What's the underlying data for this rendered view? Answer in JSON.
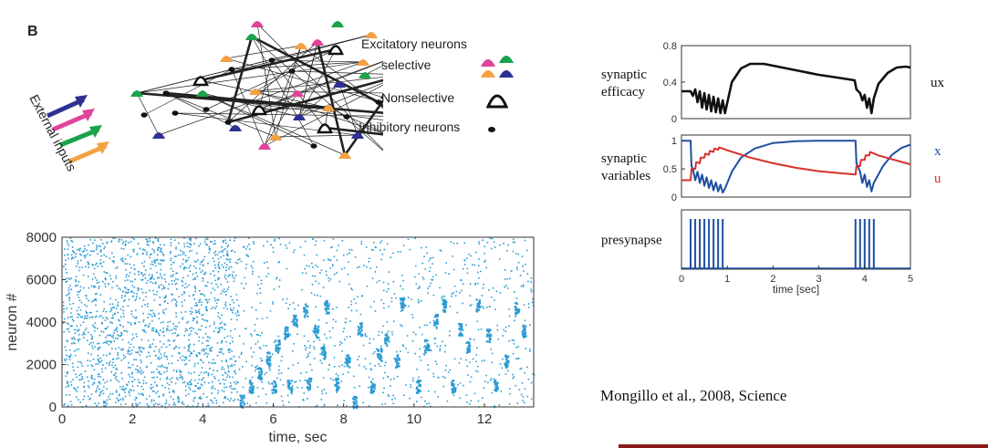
{
  "panel_b": {
    "label": "B",
    "external_inputs_label": "External inputs",
    "legend": {
      "excitatory": "Excitatory neurons",
      "selective": "selective",
      "nonselective": "Nonselective",
      "inhibitory": "Inhibitory neurons"
    },
    "colors": {
      "magenta": "#e0449a",
      "green": "#1aa34a",
      "orange": "#f4a142",
      "navy": "#2e3192",
      "black": "#111111"
    },
    "icons": [
      "selective-neuron-icon",
      "nonselective-neuron-icon",
      "inhibitory-neuron-icon",
      "arrow-icon"
    ]
  },
  "citation": "Mongillo et al., 2008,  Science",
  "chart_data": [
    {
      "type": "scatter",
      "title": "",
      "xlabel": "time, sec",
      "ylabel": "neuron #",
      "xlim": [
        0,
        13.4
      ],
      "ylim": [
        0,
        8000
      ],
      "xticks": [
        "0",
        "2",
        "4",
        "6",
        "8",
        "10",
        "12"
      ],
      "yticks": [
        "0",
        "2000",
        "4000",
        "6000",
        "8000"
      ],
      "color": "#2a9bd4",
      "background_density": {
        "before_t": 5.0,
        "after_t": 5.0
      },
      "bursts": [
        {
          "t": 5.1,
          "y": 300
        },
        {
          "t": 5.35,
          "y": 1000
        },
        {
          "t": 5.6,
          "y": 1650
        },
        {
          "t": 5.85,
          "y": 2300
        },
        {
          "t": 6.1,
          "y": 2900
        },
        {
          "t": 6.35,
          "y": 3500
        },
        {
          "t": 6.6,
          "y": 4100
        },
        {
          "t": 6.9,
          "y": 4600
        },
        {
          "t": 7.2,
          "y": 3600
        },
        {
          "t": 6.0,
          "y": 1000
        },
        {
          "t": 6.45,
          "y": 1000
        },
        {
          "t": 7.0,
          "y": 1100
        },
        {
          "t": 7.4,
          "y": 2600
        },
        {
          "t": 7.5,
          "y": 4750
        },
        {
          "t": 7.8,
          "y": 1100
        },
        {
          "t": 8.1,
          "y": 2200
        },
        {
          "t": 8.3,
          "y": 300
        },
        {
          "t": 8.45,
          "y": 3700
        },
        {
          "t": 8.8,
          "y": 1000
        },
        {
          "t": 9.0,
          "y": 2500
        },
        {
          "t": 9.2,
          "y": 3200
        },
        {
          "t": 9.5,
          "y": 2200
        },
        {
          "t": 9.65,
          "y": 4900
        },
        {
          "t": 10.1,
          "y": 1000
        },
        {
          "t": 10.35,
          "y": 2900
        },
        {
          "t": 10.6,
          "y": 4100
        },
        {
          "t": 10.85,
          "y": 4800
        },
        {
          "t": 11.1,
          "y": 1000
        },
        {
          "t": 11.3,
          "y": 3700
        },
        {
          "t": 11.5,
          "y": 2900
        },
        {
          "t": 11.8,
          "y": 4800
        },
        {
          "t": 12.1,
          "y": 3400
        },
        {
          "t": 12.3,
          "y": 1000
        },
        {
          "t": 12.6,
          "y": 2200
        },
        {
          "t": 12.9,
          "y": 4700
        },
        {
          "t": 13.1,
          "y": 3600
        }
      ]
    },
    {
      "type": "line",
      "title": "",
      "ylabel_lines": [
        "synaptic",
        "efficacy"
      ],
      "right_label": "ux",
      "xlim": [
        0,
        5
      ],
      "ylim": [
        0,
        0.8
      ],
      "yticks": [
        "0",
        "0.4",
        "0.8"
      ],
      "series": [
        {
          "name": "ux",
          "color": "#111111",
          "x": [
            0,
            0.2,
            0.25,
            0.3,
            0.35,
            0.4,
            0.45,
            0.5,
            0.55,
            0.6,
            0.65,
            0.7,
            0.75,
            0.8,
            0.85,
            0.9,
            0.95,
            1.1,
            1.3,
            1.5,
            1.8,
            2.2,
            2.6,
            3.0,
            3.4,
            3.78,
            3.82,
            3.9,
            3.95,
            4.0,
            4.05,
            4.1,
            4.15,
            4.2,
            4.3,
            4.5,
            4.7,
            4.9,
            5.0
          ],
          "y": [
            0.3,
            0.3,
            0.25,
            0.32,
            0.18,
            0.3,
            0.12,
            0.28,
            0.1,
            0.26,
            0.08,
            0.24,
            0.07,
            0.22,
            0.06,
            0.2,
            0.06,
            0.4,
            0.55,
            0.6,
            0.6,
            0.56,
            0.52,
            0.48,
            0.45,
            0.42,
            0.32,
            0.28,
            0.2,
            0.26,
            0.12,
            0.22,
            0.06,
            0.22,
            0.38,
            0.5,
            0.56,
            0.57,
            0.56
          ]
        }
      ]
    },
    {
      "type": "line",
      "title": "",
      "ylabel_lines": [
        "synaptic",
        "variables"
      ],
      "xlim": [
        0,
        5
      ],
      "ylim": [
        0,
        1.1
      ],
      "yticks": [
        "0",
        "0.5",
        "1"
      ],
      "series": [
        {
          "name": "x",
          "color": "#1f4fa0",
          "x": [
            0,
            0.2,
            0.22,
            0.25,
            0.3,
            0.35,
            0.4,
            0.45,
            0.5,
            0.55,
            0.6,
            0.65,
            0.7,
            0.75,
            0.8,
            0.85,
            0.9,
            0.95,
            1.1,
            1.3,
            1.6,
            2.0,
            2.5,
            3.0,
            3.5,
            3.8,
            3.82,
            3.9,
            3.95,
            4.0,
            4.05,
            4.1,
            4.15,
            4.2,
            4.4,
            4.6,
            4.8,
            5.0
          ],
          "y": [
            1.0,
            1.0,
            0.55,
            0.5,
            0.3,
            0.45,
            0.25,
            0.4,
            0.2,
            0.35,
            0.16,
            0.3,
            0.12,
            0.26,
            0.1,
            0.22,
            0.08,
            0.15,
            0.45,
            0.7,
            0.86,
            0.96,
            0.99,
            1.0,
            1.0,
            1.0,
            0.6,
            0.45,
            0.25,
            0.4,
            0.18,
            0.3,
            0.1,
            0.25,
            0.55,
            0.75,
            0.87,
            0.93
          ]
        },
        {
          "name": "u",
          "color": "#d6302a",
          "x": [
            0,
            0.2,
            0.22,
            0.3,
            0.32,
            0.4,
            0.42,
            0.5,
            0.52,
            0.6,
            0.62,
            0.7,
            0.72,
            0.8,
            0.82,
            0.9,
            1.0,
            1.5,
            2.0,
            2.5,
            3.0,
            3.5,
            3.8,
            3.82,
            3.9,
            3.92,
            4.0,
            4.02,
            4.1,
            4.12,
            4.3,
            4.6,
            5.0
          ],
          "y": [
            0.3,
            0.3,
            0.5,
            0.5,
            0.62,
            0.6,
            0.7,
            0.7,
            0.77,
            0.75,
            0.82,
            0.8,
            0.86,
            0.84,
            0.88,
            0.86,
            0.83,
            0.7,
            0.6,
            0.52,
            0.46,
            0.42,
            0.4,
            0.55,
            0.55,
            0.66,
            0.66,
            0.74,
            0.74,
            0.8,
            0.74,
            0.67,
            0.58
          ]
        }
      ],
      "right_labels": [
        {
          "text": "x",
          "color": "#1f4fa0"
        },
        {
          "text": "u",
          "color": "#d6302a"
        }
      ]
    },
    {
      "type": "line",
      "title": "",
      "ylabel_lines": [
        "presynapse"
      ],
      "xlabel": "time  [sec]",
      "xlim": [
        0,
        5
      ],
      "xticks": [
        "0",
        "1",
        "2",
        "3",
        "4",
        "5"
      ],
      "series": [
        {
          "name": "presynapse",
          "color": "#1f4fa0",
          "spikes": [
            0.2,
            0.3,
            0.4,
            0.5,
            0.6,
            0.7,
            0.8,
            0.9,
            3.8,
            3.9,
            4.0,
            4.1,
            4.2
          ]
        }
      ]
    }
  ]
}
